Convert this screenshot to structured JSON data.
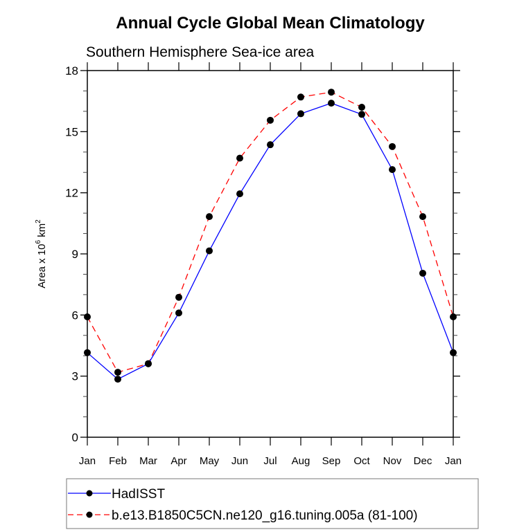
{
  "chart_data": {
    "type": "line",
    "title": "Annual Cycle Global Mean Climatology",
    "subtitle": "Southern Hemisphere Sea-ice area",
    "xlabel": "",
    "ylabel": {
      "prefix": "Area x 10",
      "exp": "6",
      "unit": " km",
      "unit_exp": "2"
    },
    "categories": [
      "Jan",
      "Feb",
      "Mar",
      "Apr",
      "May",
      "Jun",
      "Jul",
      "Aug",
      "Sep",
      "Oct",
      "Nov",
      "Dec",
      "Jan"
    ],
    "ylim": [
      0,
      18
    ],
    "yticks": [
      0,
      3,
      6,
      9,
      12,
      15,
      18
    ],
    "yminor_step": 1,
    "grid": false,
    "legend_position": "bottom",
    "series": [
      {
        "name": "HadISST",
        "color": "#0000ff",
        "style": "solid",
        "marker": "filled-circle",
        "values": [
          4.15,
          2.85,
          3.61,
          6.1,
          9.15,
          11.95,
          14.36,
          15.88,
          16.4,
          15.85,
          13.14,
          8.05,
          4.15
        ]
      },
      {
        "name": "b.e13.B1850C5CN.ne120_g16.tuning.005a (81-100)",
        "color": "#ff0000",
        "style": "dashed",
        "marker": "filled-circle",
        "values": [
          5.91,
          3.19,
          3.61,
          6.87,
          10.83,
          13.7,
          15.56,
          16.7,
          16.94,
          16.2,
          14.27,
          10.83,
          5.91
        ]
      }
    ]
  }
}
